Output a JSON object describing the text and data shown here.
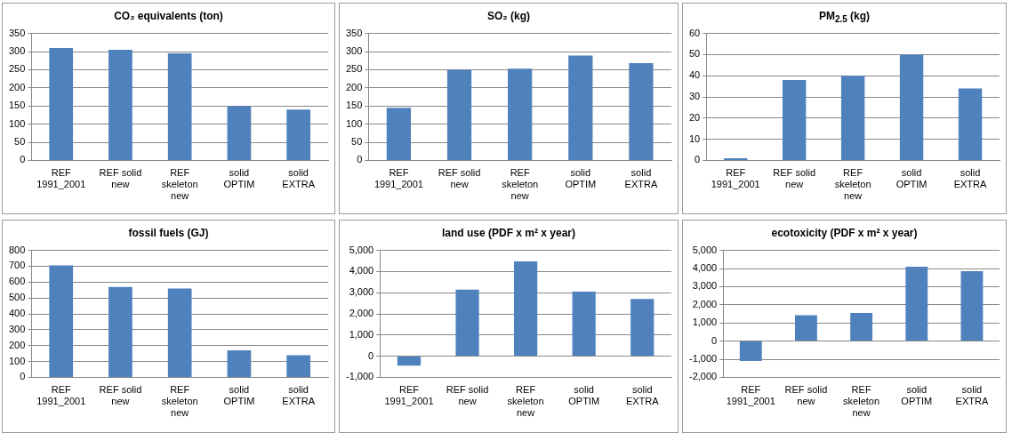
{
  "chart_data": [
    {
      "type": "bar",
      "title": "CO₂ equivalents  (ton)",
      "categories": [
        "REF 1991_2001",
        "REF solid new",
        "REF skeleton new",
        "solid OPTIM",
        "solid EXTRA"
      ],
      "values": [
        310,
        305,
        295,
        150,
        140
      ],
      "color": "#4f81bd",
      "ylim": [
        0,
        350
      ],
      "yticks": [
        0,
        50,
        100,
        150,
        200,
        250,
        300,
        350
      ],
      "grid": "y"
    },
    {
      "type": "bar",
      "title": "SO₂ (kg)",
      "categories": [
        "REF 1991_2001",
        "REF solid new",
        "REF skeleton new",
        "solid OPTIM",
        "solid EXTRA"
      ],
      "values": [
        145,
        250,
        253,
        289,
        268
      ],
      "color": "#4f81bd",
      "ylim": [
        0,
        350
      ],
      "yticks": [
        0,
        50,
        100,
        150,
        200,
        250,
        300,
        350
      ],
      "grid": "y"
    },
    {
      "type": "bar",
      "title": "PM$_{2.5}$ (kg)",
      "categories": [
        "REF 1991_2001",
        "REF solid new",
        "REF skeleton new",
        "solid OPTIM",
        "solid EXTRA"
      ],
      "values": [
        1,
        38,
        40,
        50,
        34
      ],
      "color": "#4f81bd",
      "ylim": [
        0,
        60
      ],
      "yticks": [
        0,
        10,
        20,
        30,
        40,
        50,
        60
      ],
      "grid": "y"
    },
    {
      "type": "bar",
      "title": "fossil fuels (GJ)",
      "categories": [
        "REF 1991_2001",
        "REF solid new",
        "REF skeleton new",
        "solid OPTIM",
        "solid EXTRA"
      ],
      "values": [
        705,
        570,
        560,
        170,
        140
      ],
      "color": "#4f81bd",
      "ylim": [
        0,
        800
      ],
      "yticks": [
        0,
        100,
        200,
        300,
        400,
        500,
        600,
        700,
        800
      ],
      "grid": "y"
    },
    {
      "type": "bar",
      "title": "land use (PDF  x m² x year)",
      "categories": [
        "REF 1991_2001",
        "REF solid new",
        "REF skeleton new",
        "solid OPTIM",
        "solid EXTRA"
      ],
      "values": [
        -450,
        3150,
        4480,
        3050,
        2700
      ],
      "color": "#4f81bd",
      "ylim": [
        -1000,
        5000
      ],
      "yticks": [
        {
          "value": -1000,
          "label": "-1,000"
        },
        0,
        {
          "value": 1000,
          "label": "1,000"
        },
        {
          "value": 2000,
          "label": "2,000"
        },
        {
          "value": 3000,
          "label": "3,000"
        },
        {
          "value": 4000,
          "label": "4,000"
        },
        {
          "value": 5000,
          "label": "5,000"
        }
      ],
      "grid": "y"
    },
    {
      "type": "bar",
      "title": "ecotoxicity (PDF x m² x year)",
      "categories": [
        "REF 1991_2001",
        "REF solid new",
        "REF skeleton new",
        "solid OPTIM",
        "solid EXTRA"
      ],
      "values": [
        -1100,
        1430,
        1550,
        4100,
        3850
      ],
      "color": "#4f81bd",
      "ylim": [
        -2000,
        5000
      ],
      "yticks": [
        {
          "value": -2000,
          "label": "-2,000"
        },
        {
          "value": -1000,
          "label": "-1,000"
        },
        0,
        {
          "value": 1000,
          "label": "1,000"
        },
        {
          "value": 2000,
          "label": "2,000"
        },
        {
          "value": 3000,
          "label": "3,000"
        },
        {
          "value": 4000,
          "label": "4,000"
        },
        {
          "value": 5000,
          "label": "5,000"
        }
      ],
      "grid": "y"
    }
  ]
}
